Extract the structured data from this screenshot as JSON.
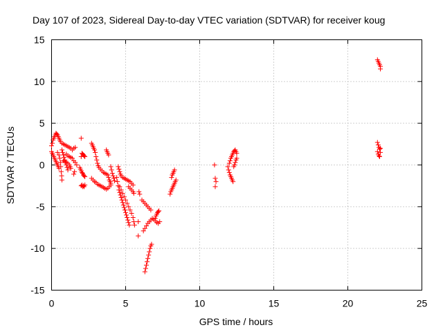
{
  "chart_data": {
    "type": "scatter",
    "title": "Day 107 of 2023, Sidereal Day-to-day VTEC variation (SDTVAR) for receiver koug",
    "xlabel": "GPS time / hours",
    "ylabel": "SDTVAR / TECUs",
    "xlim": [
      0,
      25
    ],
    "ylim": [
      -15,
      15
    ],
    "xticks": [
      0,
      5,
      10,
      15,
      20,
      25
    ],
    "yticks": [
      -15,
      -10,
      -5,
      0,
      5,
      10,
      15
    ],
    "grid": true,
    "marker": "+",
    "series": [
      {
        "name": "SDTVAR",
        "color": "#ff0000",
        "points": [
          [
            0.0,
            1.6
          ],
          [
            0.0,
            2.3
          ],
          [
            0.05,
            2.6
          ],
          [
            0.1,
            3.0
          ],
          [
            0.15,
            3.2
          ],
          [
            0.2,
            3.4
          ],
          [
            0.25,
            3.6
          ],
          [
            0.3,
            3.8
          ],
          [
            0.35,
            3.7
          ],
          [
            0.4,
            3.6
          ],
          [
            0.45,
            3.4
          ],
          [
            0.5,
            3.2
          ],
          [
            0.55,
            3.0
          ],
          [
            0.6,
            2.8
          ],
          [
            0.7,
            2.6
          ],
          [
            0.8,
            2.5
          ],
          [
            0.9,
            2.4
          ],
          [
            1.0,
            2.3
          ],
          [
            1.1,
            2.2
          ],
          [
            1.2,
            2.1
          ],
          [
            1.3,
            2.0
          ],
          [
            0.05,
            1.4
          ],
          [
            0.1,
            1.2
          ],
          [
            0.15,
            1.0
          ],
          [
            0.2,
            0.8
          ],
          [
            0.25,
            0.6
          ],
          [
            0.3,
            0.4
          ],
          [
            0.35,
            0.2
          ],
          [
            0.4,
            0.0
          ],
          [
            0.45,
            -0.2
          ],
          [
            0.5,
            -0.4
          ],
          [
            0.4,
            1.5
          ],
          [
            0.5,
            1.2
          ],
          [
            0.55,
            0.8
          ],
          [
            0.6,
            0.3
          ],
          [
            0.62,
            -0.2
          ],
          [
            0.65,
            -0.8
          ],
          [
            0.68,
            -1.3
          ],
          [
            0.7,
            -1.8
          ],
          [
            0.7,
            1.8
          ],
          [
            0.75,
            1.5
          ],
          [
            0.8,
            1.2
          ],
          [
            0.85,
            0.9
          ],
          [
            0.9,
            0.6
          ],
          [
            0.95,
            0.3
          ],
          [
            1.0,
            0.0
          ],
          [
            1.05,
            -0.3
          ],
          [
            1.1,
            -0.6
          ],
          [
            0.8,
            0.5
          ],
          [
            0.9,
            0.4
          ],
          [
            1.0,
            0.3
          ],
          [
            1.1,
            0.2
          ],
          [
            1.2,
            0.0
          ],
          [
            1.25,
            -0.2
          ],
          [
            1.3,
            -0.4
          ],
          [
            1.0,
            1.3
          ],
          [
            1.1,
            1.1
          ],
          [
            1.2,
            1.0
          ],
          [
            1.3,
            0.9
          ],
          [
            1.4,
            0.8
          ],
          [
            1.5,
            0.5
          ],
          [
            1.6,
            0.3
          ],
          [
            1.7,
            0.0
          ],
          [
            1.4,
            1.8
          ],
          [
            1.5,
            2.0
          ],
          [
            1.6,
            2.1
          ],
          [
            1.5,
            -1.1
          ],
          [
            1.55,
            -0.8
          ],
          [
            2.0,
            3.2
          ],
          [
            2.0,
            1.0
          ],
          [
            2.05,
            1.4
          ],
          [
            2.1,
            1.3
          ],
          [
            2.15,
            1.2
          ],
          [
            2.2,
            1.1
          ],
          [
            2.25,
            1.0
          ],
          [
            1.9,
            -0.3
          ],
          [
            1.95,
            -0.5
          ],
          [
            2.0,
            -0.7
          ],
          [
            2.05,
            -0.9
          ],
          [
            2.1,
            -1.0
          ],
          [
            2.15,
            -1.2
          ],
          [
            2.2,
            -1.3
          ],
          [
            2.25,
            -1.4
          ],
          [
            2.0,
            -2.5
          ],
          [
            2.05,
            -2.4
          ],
          [
            2.1,
            -2.6
          ],
          [
            2.15,
            -2.5
          ],
          [
            2.2,
            -2.6
          ],
          [
            2.25,
            -2.4
          ],
          [
            2.7,
            2.6
          ],
          [
            2.75,
            2.4
          ],
          [
            2.8,
            2.2
          ],
          [
            2.85,
            2.0
          ],
          [
            2.9,
            1.8
          ],
          [
            2.95,
            1.5
          ],
          [
            3.0,
            1.0
          ],
          [
            3.05,
            0.6
          ],
          [
            3.1,
            0.2
          ],
          [
            3.15,
            -0.1
          ],
          [
            3.2,
            -0.3
          ],
          [
            3.3,
            -0.5
          ],
          [
            3.4,
            -0.7
          ],
          [
            3.5,
            -0.9
          ],
          [
            3.6,
            -1.0
          ],
          [
            3.7,
            -1.1
          ],
          [
            2.7,
            -1.6
          ],
          [
            2.8,
            -1.8
          ],
          [
            2.9,
            -2.0
          ],
          [
            3.0,
            -2.1
          ],
          [
            3.1,
            -2.3
          ],
          [
            3.2,
            -2.4
          ],
          [
            3.3,
            -2.5
          ],
          [
            3.4,
            -2.6
          ],
          [
            3.5,
            -2.7
          ],
          [
            3.6,
            -2.8
          ],
          [
            3.7,
            -2.9
          ],
          [
            3.8,
            -2.8
          ],
          [
            3.9,
            -2.6
          ],
          [
            4.0,
            -2.4
          ],
          [
            3.7,
            1.8
          ],
          [
            3.75,
            1.6
          ],
          [
            3.8,
            1.4
          ],
          [
            3.85,
            1.2
          ],
          [
            3.8,
            -1.2
          ],
          [
            3.85,
            -1.5
          ],
          [
            3.9,
            -1.8
          ],
          [
            3.95,
            -2.0
          ],
          [
            4.0,
            -2.2
          ],
          [
            4.0,
            -0.2
          ],
          [
            4.05,
            -0.6
          ],
          [
            4.1,
            -1.0
          ],
          [
            4.15,
            -1.3
          ],
          [
            4.2,
            -1.6
          ],
          [
            4.25,
            -1.9
          ],
          [
            4.4,
            -1.5
          ],
          [
            4.45,
            -2.0
          ],
          [
            4.5,
            -2.5
          ],
          [
            4.55,
            -3.0
          ],
          [
            4.6,
            -3.3
          ],
          [
            4.65,
            -3.6
          ],
          [
            4.7,
            -3.9
          ],
          [
            4.75,
            -4.2
          ],
          [
            4.8,
            -4.5
          ],
          [
            4.85,
            -4.8
          ],
          [
            4.9,
            -5.1
          ],
          [
            4.95,
            -5.4
          ],
          [
            5.0,
            -5.7
          ],
          [
            5.05,
            -6.0
          ],
          [
            5.1,
            -6.3
          ],
          [
            5.15,
            -6.6
          ],
          [
            5.2,
            -6.9
          ],
          [
            5.25,
            -7.2
          ],
          [
            4.5,
            -0.2
          ],
          [
            4.55,
            -0.5
          ],
          [
            4.6,
            -0.8
          ],
          [
            4.65,
            -1.1
          ],
          [
            4.7,
            -1.3
          ],
          [
            4.8,
            -1.5
          ],
          [
            4.9,
            -1.6
          ],
          [
            5.0,
            -1.7
          ],
          [
            5.1,
            -1.8
          ],
          [
            5.2,
            -1.9
          ],
          [
            5.3,
            -2.0
          ],
          [
            5.4,
            -2.2
          ],
          [
            5.5,
            -2.4
          ],
          [
            4.6,
            -2.6
          ],
          [
            4.7,
            -3.0
          ],
          [
            4.8,
            -3.4
          ],
          [
            4.9,
            -3.8
          ],
          [
            5.0,
            -4.2
          ],
          [
            5.1,
            -4.6
          ],
          [
            5.2,
            -5.0
          ],
          [
            5.3,
            -5.4
          ],
          [
            5.4,
            -5.8
          ],
          [
            5.5,
            -6.3
          ],
          [
            5.55,
            -6.8
          ],
          [
            5.6,
            -7.2
          ],
          [
            5.2,
            -2.6
          ],
          [
            5.3,
            -2.8
          ],
          [
            5.4,
            -3.0
          ],
          [
            5.5,
            -3.2
          ],
          [
            5.55,
            -3.4
          ],
          [
            5.9,
            -3.2
          ],
          [
            5.95,
            -3.5
          ],
          [
            5.85,
            -6.8
          ],
          [
            5.85,
            -8.5
          ],
          [
            6.1,
            -4.2
          ],
          [
            6.2,
            -4.4
          ],
          [
            6.3,
            -4.6
          ],
          [
            6.4,
            -4.8
          ],
          [
            6.5,
            -5.0
          ],
          [
            6.6,
            -5.2
          ],
          [
            6.7,
            -5.4
          ],
          [
            6.2,
            -7.9
          ],
          [
            6.3,
            -7.6
          ],
          [
            6.4,
            -7.3
          ],
          [
            6.5,
            -7.0
          ],
          [
            6.6,
            -6.8
          ],
          [
            6.7,
            -6.6
          ],
          [
            6.8,
            -6.4
          ],
          [
            6.3,
            -12.8
          ],
          [
            6.35,
            -12.4
          ],
          [
            6.4,
            -12.0
          ],
          [
            6.45,
            -11.6
          ],
          [
            6.5,
            -11.2
          ],
          [
            6.55,
            -10.8
          ],
          [
            6.6,
            -10.4
          ],
          [
            6.65,
            -10.0
          ],
          [
            6.7,
            -9.7
          ],
          [
            6.75,
            -9.5
          ],
          [
            6.9,
            -6.5
          ],
          [
            7.0,
            -6.7
          ],
          [
            7.1,
            -6.9
          ],
          [
            7.2,
            -7.0
          ],
          [
            7.3,
            -6.8
          ],
          [
            7.0,
            -6.4
          ],
          [
            7.05,
            -6.1
          ],
          [
            7.1,
            -5.9
          ],
          [
            7.15,
            -5.7
          ],
          [
            7.2,
            -5.6
          ],
          [
            7.25,
            -5.5
          ],
          [
            8.0,
            -3.5
          ],
          [
            8.05,
            -3.2
          ],
          [
            8.1,
            -3.0
          ],
          [
            8.15,
            -2.8
          ],
          [
            8.2,
            -2.6
          ],
          [
            8.25,
            -2.4
          ],
          [
            8.3,
            -2.2
          ],
          [
            8.35,
            -2.0
          ],
          [
            8.4,
            -1.8
          ],
          [
            8.1,
            -1.5
          ],
          [
            8.15,
            -1.2
          ],
          [
            8.2,
            -1.0
          ],
          [
            8.25,
            -0.8
          ],
          [
            8.3,
            -0.6
          ],
          [
            11.0,
            0.0
          ],
          [
            11.05,
            -1.6
          ],
          [
            11.1,
            -2.0
          ],
          [
            11.05,
            -2.6
          ],
          [
            11.9,
            -0.2
          ],
          [
            12.0,
            0.2
          ],
          [
            12.05,
            0.5
          ],
          [
            12.1,
            0.8
          ],
          [
            12.15,
            1.0
          ],
          [
            12.2,
            1.2
          ],
          [
            12.25,
            1.4
          ],
          [
            12.3,
            1.6
          ],
          [
            12.35,
            1.7
          ],
          [
            12.4,
            1.8
          ],
          [
            12.45,
            1.6
          ],
          [
            12.5,
            1.4
          ],
          [
            11.95,
            -0.6
          ],
          [
            12.0,
            -0.9
          ],
          [
            12.05,
            -1.2
          ],
          [
            12.1,
            -1.4
          ],
          [
            12.15,
            -1.6
          ],
          [
            12.2,
            -1.8
          ],
          [
            12.25,
            -2.0
          ],
          [
            12.3,
            -0.2
          ],
          [
            12.35,
            0.0
          ],
          [
            12.4,
            0.3
          ],
          [
            12.45,
            0.6
          ],
          [
            12.5,
            0.8
          ],
          [
            22.0,
            12.6
          ],
          [
            22.05,
            12.4
          ],
          [
            22.1,
            12.2
          ],
          [
            22.15,
            12.0
          ],
          [
            22.2,
            11.8
          ],
          [
            22.2,
            11.5
          ],
          [
            22.0,
            2.7
          ],
          [
            22.05,
            2.4
          ],
          [
            22.1,
            2.1
          ],
          [
            22.15,
            1.9
          ],
          [
            22.0,
            1.6
          ],
          [
            22.05,
            1.3
          ],
          [
            22.1,
            1.1
          ],
          [
            22.15,
            1.0
          ],
          [
            22.2,
            1.5
          ],
          [
            22.2,
            2.0
          ]
        ]
      }
    ]
  }
}
